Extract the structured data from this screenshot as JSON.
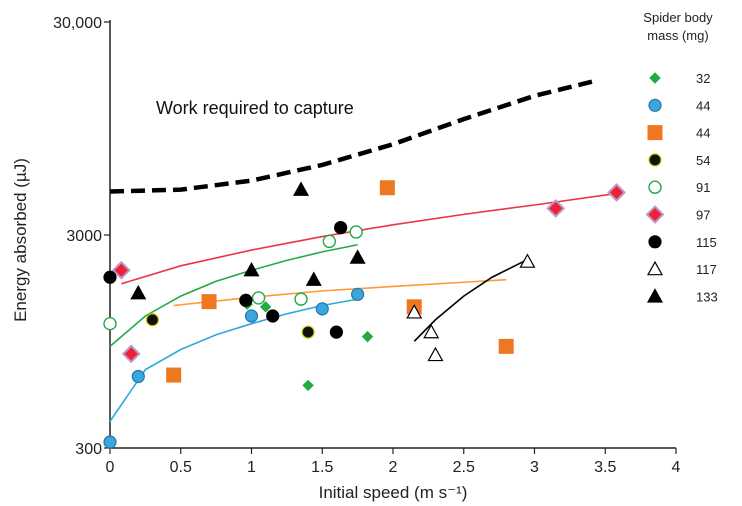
{
  "chart_data": {
    "type": "scatter",
    "title": "",
    "xlabel": "Initial speed (m s⁻¹)",
    "ylabel": "Energy absorbed (µJ)",
    "xlim": [
      0,
      4
    ],
    "ylim": [
      300,
      30000
    ],
    "yscale": "log",
    "xticks": [
      "0",
      "0.5",
      "1",
      "1.5",
      "2",
      "2.5",
      "3",
      "3.5",
      "4"
    ],
    "xtick_values": [
      0,
      0.5,
      1,
      1.5,
      2,
      2.5,
      3,
      3.5,
      4
    ],
    "yticks": [
      "300",
      "3000",
      "30,000"
    ],
    "ytick_values": [
      300,
      3000,
      30000
    ],
    "legend": {
      "title_line1": "Spider body",
      "title_line2": "mass (mg)",
      "placement": "right"
    },
    "annotation": "Work required to capture",
    "capture_curve": {
      "x": [
        0,
        0.5,
        1,
        1.5,
        2,
        2.5,
        3,
        3.45
      ],
      "y": [
        4800,
        4900,
        5400,
        6400,
        8000,
        10500,
        13500,
        16000
      ]
    },
    "series": [
      {
        "name": "32",
        "marker": "diamond",
        "fill": "#22aa44",
        "stroke": "#22aa44",
        "x": [
          0.97,
          1.1,
          1.4,
          1.82
        ],
        "y": [
          1420,
          1380,
          590,
          1000
        ]
      },
      {
        "name": "44",
        "marker": "circle",
        "fill": "#3aa6dc",
        "stroke": "#2277aa",
        "x": [
          0,
          0.2,
          1,
          1.5,
          1.75
        ],
        "y": [
          320,
          650,
          1250,
          1350,
          1580
        ],
        "fit": {
          "color": "#30aadd",
          "x": [
            0,
            0.25,
            0.5,
            0.75,
            1,
            1.25,
            1.5,
            1.75
          ],
          "y": [
            400,
            700,
            870,
            1020,
            1150,
            1280,
            1400,
            1500
          ]
        }
      },
      {
        "name": "44",
        "marker": "square",
        "fill": "#ee7722",
        "stroke": "#ee7722",
        "x": [
          0.45,
          0.7,
          1.96,
          2.15,
          2.8
        ],
        "y": [
          660,
          1460,
          5000,
          1380,
          900
        ],
        "fit": {
          "color": "#ff9933",
          "x": [
            0.45,
            1,
            1.5,
            2,
            2.5,
            2.8
          ],
          "y": [
            1400,
            1530,
            1640,
            1720,
            1800,
            1850
          ]
        }
      },
      {
        "name": "54",
        "marker": "circle",
        "fill": "#111111",
        "stroke": "#cccc00",
        "x": [
          0.3,
          0.96,
          1.4
        ],
        "y": [
          1200,
          1480,
          1050
        ],
        "fit": {
          "color": "#22aa44",
          "x": [
            0,
            0.25,
            0.5,
            0.75,
            1,
            1.25,
            1.5,
            1.75
          ],
          "y": [
            900,
            1250,
            1550,
            1820,
            2050,
            2280,
            2500,
            2700
          ]
        }
      },
      {
        "name": "91",
        "marker": "circle-open",
        "fill": "#ffffff",
        "stroke": "#22aa44",
        "x": [
          0,
          1.05,
          1.35,
          1.55,
          1.74
        ],
        "y": [
          1150,
          1520,
          1500,
          2800,
          3100
        ]
      },
      {
        "name": "97",
        "marker": "diamond",
        "fill": "#ee2233",
        "stroke": "#bb99cc",
        "x": [
          0.08,
          0.15,
          3.15,
          3.58
        ],
        "y": [
          2050,
          830,
          4000,
          4750
        ],
        "fit": {
          "color": "#ee3344",
          "x": [
            0.08,
            0.5,
            1,
            1.5,
            2,
            2.5,
            3,
            3.58
          ],
          "y": [
            1770,
            2150,
            2550,
            2950,
            3350,
            3750,
            4150,
            4700
          ]
        }
      },
      {
        "name": "115",
        "marker": "circle",
        "fill": "#000000",
        "stroke": "#000000",
        "x": [
          0,
          0.96,
          1.15,
          1.6,
          1.63
        ],
        "y": [
          1900,
          1480,
          1250,
          1050,
          3250
        ]
      },
      {
        "name": "117",
        "marker": "triangle-open",
        "fill": "#ffffff",
        "stroke": "#000000",
        "x": [
          2.15,
          2.27,
          2.3,
          2.95
        ],
        "y": [
          1300,
          1050,
          820,
          2250
        ],
        "fit": {
          "color": "#000000",
          "x": [
            2.15,
            2.3,
            2.5,
            2.7,
            2.95
          ],
          "y": [
            950,
            1200,
            1550,
            1900,
            2300
          ]
        }
      },
      {
        "name": "133",
        "marker": "triangle",
        "fill": "#000000",
        "stroke": "#000000",
        "x": [
          0.2,
          1,
          1.35,
          1.44,
          1.75
        ],
        "y": [
          1600,
          2050,
          4900,
          1850,
          2350
        ]
      }
    ],
    "grid": false
  }
}
